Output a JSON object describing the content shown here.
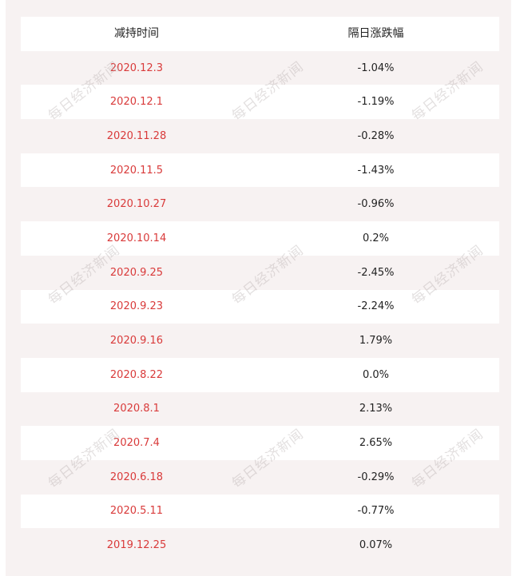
{
  "table": {
    "header": {
      "col1": "减持时间",
      "col2": "隔日涨跌幅"
    },
    "rows": [
      {
        "date": "2020.12.3",
        "change": "-1.04%"
      },
      {
        "date": "2020.12.1",
        "change": "-1.19%"
      },
      {
        "date": "2020.11.28",
        "change": "-0.28%"
      },
      {
        "date": "2020.11.5",
        "change": "-1.43%"
      },
      {
        "date": "2020.10.27",
        "change": "-0.96%"
      },
      {
        "date": "2020.10.14",
        "change": "0.2%"
      },
      {
        "date": "2020.9.25",
        "change": "-2.45%"
      },
      {
        "date": "2020.9.23",
        "change": "-2.24%"
      },
      {
        "date": "2020.9.16",
        "change": "1.79%"
      },
      {
        "date": "2020.8.22",
        "change": "0.0%"
      },
      {
        "date": "2020.8.1",
        "change": "2.13%"
      },
      {
        "date": "2020.7.4",
        "change": "2.65%"
      },
      {
        "date": "2020.6.18",
        "change": "-0.29%"
      },
      {
        "date": "2020.5.11",
        "change": "-0.77%"
      },
      {
        "date": "2019.12.25",
        "change": "0.07%"
      }
    ]
  },
  "watermark": {
    "text": "每日经济新闻"
  },
  "colors": {
    "date_text": "#d93a3a",
    "body_text": "#222222",
    "stripe": "#f7f2f2",
    "row_light": "#ffffff"
  }
}
